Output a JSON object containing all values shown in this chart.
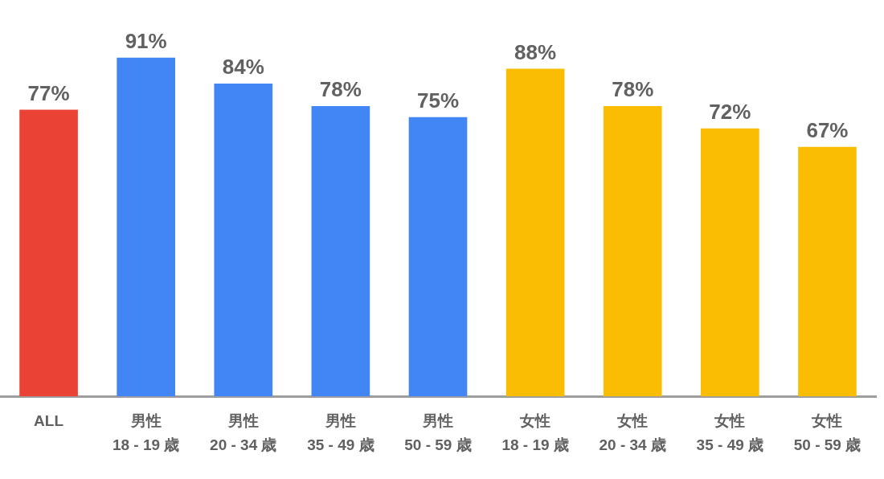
{
  "chart_data": {
    "type": "bar",
    "categories": [
      "ALL",
      "男性\n18 - 19 歳",
      "男性\n20 - 34 歳",
      "男性\n35 - 49 歳",
      "男性\n50 - 59 歳",
      "女性\n18 - 19 歳",
      "女性\n20 - 34 歳",
      "女性\n35 - 49 歳",
      "女性\n50 - 59 歳"
    ],
    "values": [
      77,
      91,
      84,
      78,
      75,
      88,
      78,
      72,
      67
    ],
    "colors": [
      "#ea4335",
      "#4285f4",
      "#4285f4",
      "#4285f4",
      "#4285f4",
      "#fbbc04",
      "#fbbc04",
      "#fbbc04",
      "#fbbc04"
    ],
    "value_labels": [
      "77%",
      "91%",
      "84%",
      "78%",
      "75%",
      "88%",
      "78%",
      "72%",
      "67%"
    ],
    "tick_labels": "x",
    "grid": false,
    "legend": false
  }
}
